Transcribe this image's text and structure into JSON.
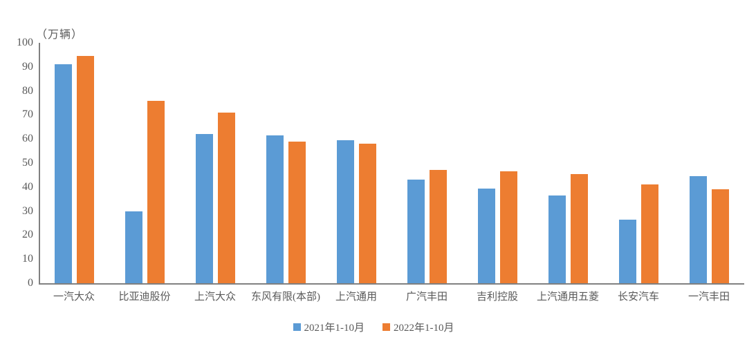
{
  "chart_data": {
    "type": "bar",
    "title": "",
    "unit_label": "（万辆）",
    "categories": [
      "一汽大众",
      "比亚迪股份",
      "上汽大众",
      "东风有限(本部)",
      "上汽通用",
      "广汽丰田",
      "吉利控股",
      "上汽通用五菱",
      "长安汽车",
      "一汽丰田"
    ],
    "series": [
      {
        "key": "2021",
        "name": "2021年1-10月",
        "color": "#5B9BD5",
        "values": [
          91,
          30,
          62,
          61.5,
          59.5,
          43,
          39.5,
          36.5,
          26.5,
          44.5
        ]
      },
      {
        "key": "2022",
        "name": "2022年1-10月",
        "color": "#ED7D31",
        "values": [
          94.5,
          76,
          71,
          59,
          58,
          47,
          46.5,
          45.5,
          41,
          39
        ]
      }
    ],
    "xlabel": "",
    "ylabel": "",
    "ylim": [
      0,
      100
    ],
    "yticks": [
      0,
      10,
      20,
      30,
      40,
      50,
      60,
      70,
      80,
      90,
      100
    ],
    "grid": false,
    "legend_position": "bottom"
  },
  "colors": {
    "axis": "#808080",
    "text": "#595959",
    "background": "#ffffff"
  }
}
